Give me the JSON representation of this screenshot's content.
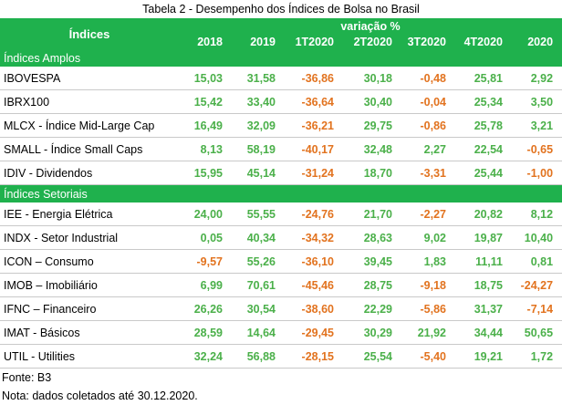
{
  "caption": "Tabela 2 - Desempenho dos Índices de Bolsa no Brasil",
  "header": {
    "indices_label": "Índices",
    "variation_label": "variação %",
    "columns": [
      "2018",
      "2019",
      "1T2020",
      "2T2020",
      "3T2020",
      "4T2020",
      "2020"
    ]
  },
  "sections": [
    {
      "title": "Índices Amplos",
      "rows": [
        {
          "name": "IBOVESPA",
          "values": [
            "15,03",
            "31,58",
            "-36,86",
            "30,18",
            "-0,48",
            "25,81",
            "2,92"
          ]
        },
        {
          "name": "IBRX100",
          "values": [
            "15,42",
            "33,40",
            "-36,64",
            "30,40",
            "-0,04",
            "25,34",
            "3,50"
          ]
        },
        {
          "name": "MLCX - Índice Mid-Large Cap",
          "values": [
            "16,49",
            "32,09",
            "-36,21",
            "29,75",
            "-0,86",
            "25,78",
            "3,21"
          ]
        },
        {
          "name": "SMALL - Índice Small Caps",
          "values": [
            "8,13",
            "58,19",
            "-40,17",
            "32,48",
            "2,27",
            "22,54",
            "-0,65"
          ]
        },
        {
          "name": "IDIV - Dividendos",
          "values": [
            "15,95",
            "45,14",
            "-31,24",
            "18,70",
            "-3,31",
            "25,44",
            "-1,00"
          ]
        }
      ]
    },
    {
      "title": "Índices Setoriais",
      "rows": [
        {
          "name": "IEE - Energia Elétrica",
          "values": [
            "24,00",
            "55,55",
            "-24,76",
            "21,70",
            "-2,27",
            "20,82",
            "8,12"
          ]
        },
        {
          "name": "INDX - Setor Industrial",
          "values": [
            "0,05",
            "40,34",
            "-34,32",
            "28,63",
            "9,02",
            "19,87",
            "10,40"
          ]
        },
        {
          "name": "ICON – Consumo",
          "values": [
            "-9,57",
            "55,26",
            "-36,10",
            "39,45",
            "1,83",
            "11,11",
            "0,81"
          ]
        },
        {
          "name": "IMOB – Imobiliário",
          "values": [
            "6,99",
            "70,61",
            "-45,46",
            "28,75",
            "-9,18",
            "18,75",
            "-24,27"
          ]
        },
        {
          "name": "IFNC – Financeiro",
          "values": [
            "26,26",
            "30,54",
            "-38,60",
            "22,29",
            "-5,86",
            "31,37",
            "-7,14"
          ]
        },
        {
          "name": "IMAT - Básicos",
          "values": [
            "28,59",
            "14,64",
            "-29,45",
            "30,29",
            "21,92",
            "34,44",
            "50,65"
          ]
        },
        {
          "name": "UTIL - Utilities",
          "values": [
            "32,24",
            "56,88",
            "-28,15",
            "25,54",
            "-5,40",
            "19,21",
            "1,72"
          ]
        }
      ]
    }
  ],
  "colors": {
    "header_bg": "#1fb14d",
    "positive": "#4bb04a",
    "negative": "#e2731f"
  },
  "notes": [
    "Fonte: B3",
    "Nota: dados coletados até 30.12.2020."
  ]
}
